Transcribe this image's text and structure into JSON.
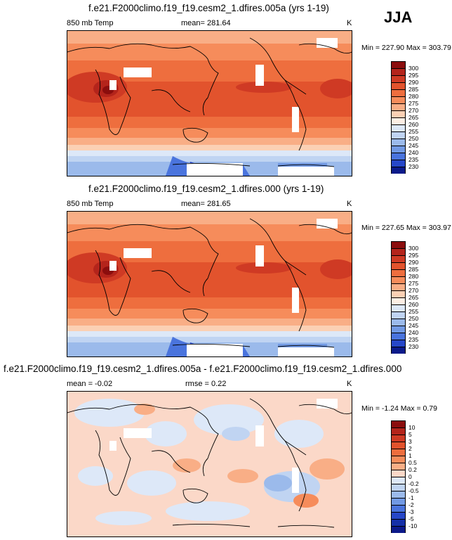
{
  "season": "JJA",
  "panels": [
    {
      "title": "f.e21.F2000climo.f19_f19.cesm2_1.dfires.005a (yrs 1-19)",
      "variable": "850 mb Temp",
      "mean": "mean= 281.64",
      "units": "K",
      "minmax": "Min = 227.90 Max = 303.79",
      "colorbar": {
        "levels": [
          "300",
          "295",
          "290",
          "285",
          "280",
          "275",
          "270",
          "265",
          "260",
          "255",
          "250",
          "245",
          "240",
          "235",
          "230"
        ],
        "colors": [
          "#8b0d0d",
          "#b4241b",
          "#cf3a24",
          "#e2532d",
          "#ee6e3e",
          "#f68c5b",
          "#f9ae86",
          "#fbd0b4",
          "#fdeee4",
          "#dde8f8",
          "#c0d4f2",
          "#9bbaeb",
          "#7199e4",
          "#4a74dd",
          "#2747c8",
          "#0c1a8a"
        ]
      }
    },
    {
      "title": "f.e21.F2000climo.f19_f19.cesm2_1.dfires.000 (yrs 1-19)",
      "variable": "850 mb Temp",
      "mean": "mean= 281.65",
      "units": "K",
      "minmax": "Min = 227.65 Max = 303.97",
      "colorbar": {
        "levels": [
          "300",
          "295",
          "290",
          "285",
          "280",
          "275",
          "270",
          "265",
          "260",
          "255",
          "250",
          "245",
          "240",
          "235",
          "230"
        ],
        "colors": [
          "#8b0d0d",
          "#b4241b",
          "#cf3a24",
          "#e2532d",
          "#ee6e3e",
          "#f68c5b",
          "#f9ae86",
          "#fbd0b4",
          "#fdeee4",
          "#dde8f8",
          "#c0d4f2",
          "#9bbaeb",
          "#7199e4",
          "#4a74dd",
          "#2747c8",
          "#0c1a8a"
        ]
      }
    },
    {
      "title": "f.e21.F2000climo.f19_f19.cesm2_1.dfires.005a - f.e21.F2000climo.f19_f19.cesm2_1.dfires.000",
      "mean": "mean =  -0.02",
      "rmse": "rmse =   0.22",
      "units": "K",
      "minmax": "Min =  -1.24 Max =   0.79",
      "colorbar": {
        "levels": [
          "10",
          "5",
          "3",
          "2",
          "1",
          "0.5",
          "0.2",
          "0",
          "-0.2",
          "-0.5",
          "-1",
          "-2",
          "-3",
          "-5",
          "-10"
        ],
        "colors": [
          "#8b0d0d",
          "#b4241b",
          "#cf3a24",
          "#e2532d",
          "#ee6e3e",
          "#f68c5b",
          "#f9ae86",
          "#fbd8c8",
          "#dde8f8",
          "#c0d4f2",
          "#9bbaeb",
          "#7199e4",
          "#4a74dd",
          "#2747c8",
          "#1530a8",
          "#0c1a8a"
        ]
      }
    }
  ]
}
